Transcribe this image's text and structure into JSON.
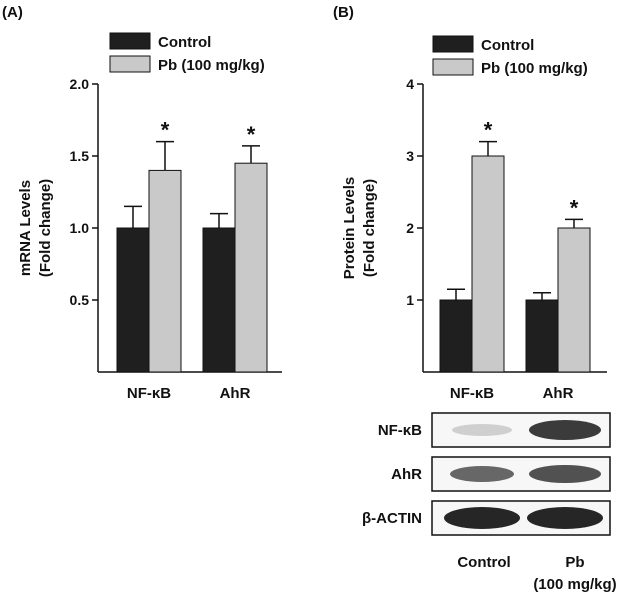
{
  "colors": {
    "control": "#1f1f1f",
    "pb": "#c9c9c9",
    "axis": "#111111"
  },
  "panels": [
    {
      "tag": "(A)"
    },
    {
      "tag": "(B)"
    }
  ],
  "western_blot": {
    "rows": [
      "NF-κB",
      "AhR",
      "β-ACTIN"
    ],
    "lanes": [
      "Control",
      "Pb"
    ],
    "lane_sublabel": "(100 mg/kg)"
  },
  "chart_data": [
    {
      "type": "bar",
      "panel": "(A)",
      "categories": [
        "NF-κB",
        "AhR"
      ],
      "series": [
        {
          "name": "Control",
          "values": [
            1.0,
            1.0
          ],
          "errors": [
            0.15,
            0.1
          ]
        },
        {
          "name": "Pb (100 mg/kg)",
          "values": [
            1.4,
            1.45
          ],
          "errors": [
            0.2,
            0.12
          ]
        }
      ],
      "significance": [
        [
          false,
          true
        ],
        [
          false,
          true
        ]
      ],
      "significance_marker": "*",
      "ylabel_line1": "mRNA Levels",
      "ylabel_line2": "(Fold change)",
      "ylim": [
        0.0,
        2.0
      ],
      "yticks": [
        "0.5",
        "1.0",
        "1.5",
        "2.0"
      ],
      "ytick_values": [
        0.5,
        1.0,
        1.5,
        2.0
      ],
      "legend": "top"
    },
    {
      "type": "bar",
      "panel": "(B)",
      "categories": [
        "NF-κB",
        "AhR"
      ],
      "series": [
        {
          "name": "Control",
          "values": [
            1.0,
            1.0
          ],
          "errors": [
            0.15,
            0.1
          ]
        },
        {
          "name": "Pb (100 mg/kg)",
          "values": [
            3.0,
            2.0
          ],
          "errors": [
            0.2,
            0.12
          ]
        }
      ],
      "significance": [
        [
          false,
          true
        ],
        [
          false,
          true
        ]
      ],
      "significance_marker": "*",
      "ylabel_line1": "Protein Levels",
      "ylabel_line2": "(Fold change)",
      "ylim": [
        0,
        4
      ],
      "yticks": [
        "1",
        "2",
        "3",
        "4"
      ],
      "ytick_values": [
        1,
        2,
        3,
        4
      ],
      "legend": "top"
    }
  ]
}
